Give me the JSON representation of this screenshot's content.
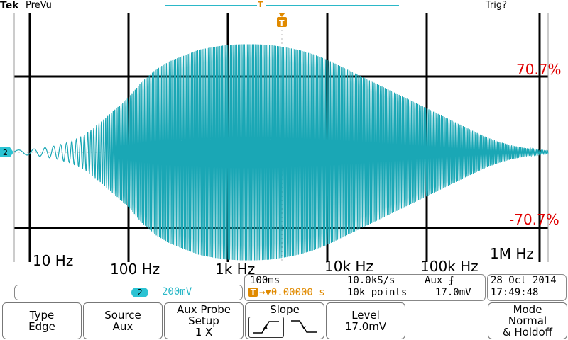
{
  "header": {
    "brand": "Tek",
    "acq_mode": "PreVu",
    "trigger_status": "Trig?",
    "trigger_pos_marker": "T"
  },
  "graticule": {
    "channel_marker": "2",
    "trigger_marker": "T",
    "upper_label": "70.7%",
    "lower_label": "-70.7%",
    "freq_labels": [
      "10 Hz",
      "100 Hz",
      "1k Hz",
      "10k Hz",
      "100k Hz",
      "1M Hz"
    ]
  },
  "channel_readout": {
    "channel": "2",
    "scale": "200mV"
  },
  "timebase": {
    "scale": "100ms",
    "sample_rate": "10.0kS/s",
    "trigger_source": "Aux",
    "trigger_slope_symbol": "⨍",
    "trigger_offset_marker": "T",
    "trigger_offset": "→▼0.00000 s",
    "record_length": "10k points",
    "trigger_level": "17.0mV"
  },
  "datetime": {
    "date": "28 Oct  2014",
    "time": "17:49:48"
  },
  "softkeys": {
    "type": {
      "title": "Type",
      "value": "Edge"
    },
    "source": {
      "title": "Source",
      "value": "Aux"
    },
    "aux_probe": {
      "title": "Aux Probe",
      "line2": "Setup",
      "value": "1 X"
    },
    "slope": {
      "title": "Slope"
    },
    "level": {
      "title": "Level",
      "value": "17.0mV"
    },
    "mode": {
      "title": "Mode",
      "line2": "Normal",
      "value": "& Holdoff"
    }
  },
  "colors": {
    "trace": "#1aa7b5",
    "label_red": "#e00000",
    "trigger_orange": "#e08a00",
    "channel_cyan": "#2bc3d3"
  }
}
